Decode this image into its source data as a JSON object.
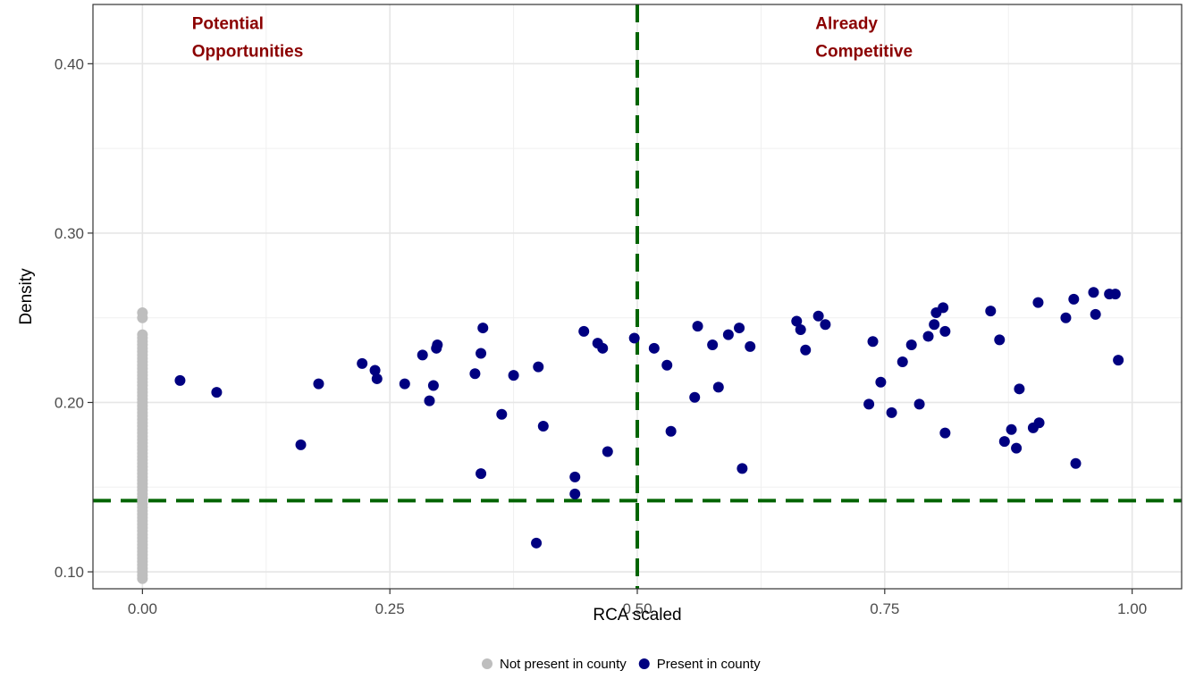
{
  "chart_data": {
    "type": "scatter",
    "xlabel": "RCA scaled",
    "ylabel": "Density",
    "xlim": [
      -0.05,
      1.05
    ],
    "ylim": [
      0.09,
      0.435
    ],
    "x_ticks": [
      0.0,
      0.25,
      0.5,
      0.75,
      1.0
    ],
    "x_tick_labels": [
      "0.00",
      "0.25",
      "0.50",
      "0.75",
      "1.00"
    ],
    "y_ticks": [
      0.1,
      0.2,
      0.3,
      0.4
    ],
    "y_tick_labels": [
      "0.10",
      "0.20",
      "0.30",
      "0.40"
    ],
    "grid": true,
    "legend_position": "bottom",
    "reference_lines": {
      "vertical_x": 0.5,
      "horizontal_y": 0.142,
      "color": "#006400",
      "style": "dashed"
    },
    "annotations": [
      {
        "lines": [
          "Potential",
          "Opportunities"
        ],
        "x": 0.05,
        "y": 0.43,
        "color": "#8b0000"
      },
      {
        "lines": [
          "Already",
          "Competitive"
        ],
        "x": 0.68,
        "y": 0.43,
        "color": "#8b0000"
      }
    ],
    "series": [
      {
        "name": "Not present in county",
        "color": "#bebebe",
        "points": [
          [
            0,
            0.096
          ],
          [
            0,
            0.098
          ],
          [
            0,
            0.1
          ],
          [
            0,
            0.102
          ],
          [
            0,
            0.104
          ],
          [
            0,
            0.106
          ],
          [
            0,
            0.108
          ],
          [
            0,
            0.11
          ],
          [
            0,
            0.112
          ],
          [
            0,
            0.114
          ],
          [
            0,
            0.116
          ],
          [
            0,
            0.118
          ],
          [
            0,
            0.12
          ],
          [
            0,
            0.122
          ],
          [
            0,
            0.124
          ],
          [
            0,
            0.126
          ],
          [
            0,
            0.128
          ],
          [
            0,
            0.13
          ],
          [
            0,
            0.132
          ],
          [
            0,
            0.134
          ],
          [
            0,
            0.136
          ],
          [
            0,
            0.138
          ],
          [
            0,
            0.14
          ],
          [
            0,
            0.142
          ],
          [
            0,
            0.144
          ],
          [
            0,
            0.146
          ],
          [
            0,
            0.148
          ],
          [
            0,
            0.15
          ],
          [
            0,
            0.152
          ],
          [
            0,
            0.154
          ],
          [
            0,
            0.156
          ],
          [
            0,
            0.158
          ],
          [
            0,
            0.16
          ],
          [
            0,
            0.162
          ],
          [
            0,
            0.164
          ],
          [
            0,
            0.166
          ],
          [
            0,
            0.168
          ],
          [
            0,
            0.17
          ],
          [
            0,
            0.172
          ],
          [
            0,
            0.174
          ],
          [
            0,
            0.176
          ],
          [
            0,
            0.178
          ],
          [
            0,
            0.18
          ],
          [
            0,
            0.182
          ],
          [
            0,
            0.184
          ],
          [
            0,
            0.186
          ],
          [
            0,
            0.188
          ],
          [
            0,
            0.19
          ],
          [
            0,
            0.192
          ],
          [
            0,
            0.194
          ],
          [
            0,
            0.196
          ],
          [
            0,
            0.198
          ],
          [
            0,
            0.2
          ],
          [
            0,
            0.202
          ],
          [
            0,
            0.204
          ],
          [
            0,
            0.206
          ],
          [
            0,
            0.208
          ],
          [
            0,
            0.21
          ],
          [
            0,
            0.212
          ],
          [
            0,
            0.214
          ],
          [
            0,
            0.216
          ],
          [
            0,
            0.218
          ],
          [
            0,
            0.22
          ],
          [
            0,
            0.222
          ],
          [
            0,
            0.224
          ],
          [
            0,
            0.226
          ],
          [
            0,
            0.228
          ],
          [
            0,
            0.23
          ],
          [
            0,
            0.232
          ],
          [
            0,
            0.234
          ],
          [
            0,
            0.236
          ],
          [
            0,
            0.238
          ],
          [
            0,
            0.24
          ],
          [
            0,
            0.25
          ],
          [
            0,
            0.253
          ]
        ]
      },
      {
        "name": "Present in county",
        "color": "#000080",
        "points": [
          [
            0.038,
            0.213
          ],
          [
            0.075,
            0.206
          ],
          [
            0.16,
            0.175
          ],
          [
            0.178,
            0.211
          ],
          [
            0.222,
            0.223
          ],
          [
            0.235,
            0.219
          ],
          [
            0.237,
            0.214
          ],
          [
            0.265,
            0.211
          ],
          [
            0.283,
            0.228
          ],
          [
            0.29,
            0.201
          ],
          [
            0.294,
            0.21
          ],
          [
            0.297,
            0.232
          ],
          [
            0.298,
            0.234
          ],
          [
            0.336,
            0.217
          ],
          [
            0.342,
            0.229
          ],
          [
            0.344,
            0.244
          ],
          [
            0.342,
            0.158
          ],
          [
            0.363,
            0.193
          ],
          [
            0.375,
            0.216
          ],
          [
            0.398,
            0.117
          ],
          [
            0.4,
            0.221
          ],
          [
            0.405,
            0.186
          ],
          [
            0.437,
            0.156
          ],
          [
            0.437,
            0.146
          ],
          [
            0.446,
            0.242
          ],
          [
            0.46,
            0.235
          ],
          [
            0.465,
            0.232
          ],
          [
            0.47,
            0.171
          ],
          [
            0.497,
            0.238
          ],
          [
            0.517,
            0.232
          ],
          [
            0.53,
            0.222
          ],
          [
            0.534,
            0.183
          ],
          [
            0.558,
            0.203
          ],
          [
            0.561,
            0.245
          ],
          [
            0.576,
            0.234
          ],
          [
            0.582,
            0.209
          ],
          [
            0.592,
            0.24
          ],
          [
            0.603,
            0.244
          ],
          [
            0.606,
            0.161
          ],
          [
            0.614,
            0.233
          ],
          [
            0.661,
            0.248
          ],
          [
            0.665,
            0.243
          ],
          [
            0.67,
            0.231
          ],
          [
            0.683,
            0.251
          ],
          [
            0.69,
            0.246
          ],
          [
            0.734,
            0.199
          ],
          [
            0.738,
            0.236
          ],
          [
            0.746,
            0.212
          ],
          [
            0.757,
            0.194
          ],
          [
            0.768,
            0.224
          ],
          [
            0.777,
            0.234
          ],
          [
            0.785,
            0.199
          ],
          [
            0.794,
            0.239
          ],
          [
            0.8,
            0.246
          ],
          [
            0.802,
            0.253
          ],
          [
            0.809,
            0.256
          ],
          [
            0.811,
            0.242
          ],
          [
            0.811,
            0.182
          ],
          [
            0.857,
            0.254
          ],
          [
            0.866,
            0.237
          ],
          [
            0.871,
            0.177
          ],
          [
            0.878,
            0.184
          ],
          [
            0.883,
            0.173
          ],
          [
            0.886,
            0.208
          ],
          [
            0.9,
            0.185
          ],
          [
            0.905,
            0.259
          ],
          [
            0.906,
            0.188
          ],
          [
            0.933,
            0.25
          ],
          [
            0.941,
            0.261
          ],
          [
            0.943,
            0.164
          ],
          [
            0.961,
            0.265
          ],
          [
            0.963,
            0.252
          ],
          [
            0.977,
            0.264
          ],
          [
            0.983,
            0.264
          ],
          [
            0.986,
            0.225
          ]
        ]
      }
    ]
  }
}
